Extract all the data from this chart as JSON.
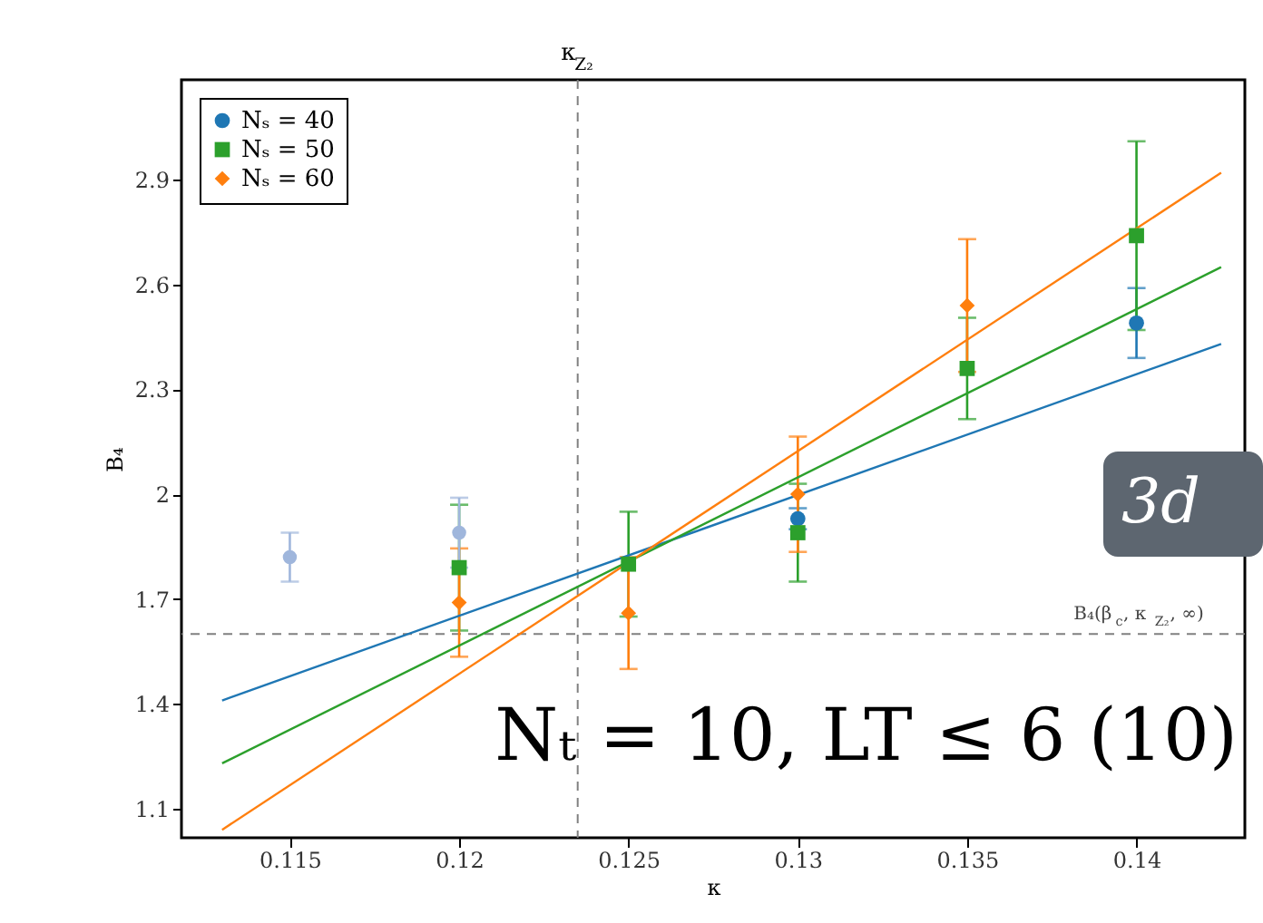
{
  "chart_data": {
    "type": "scatter",
    "xlabel": "κ",
    "ylabel": "B₄",
    "xlim": [
      0.1118,
      0.1432
    ],
    "ylim": [
      1.017,
      3.186
    ],
    "xticks": [
      0.115,
      0.12,
      0.125,
      0.13,
      0.135,
      0.14
    ],
    "yticks": [
      1.1,
      1.4,
      1.7,
      2,
      2.3,
      2.6,
      2.9
    ],
    "grid": false,
    "legend": "top left",
    "series": [
      {
        "name": "Nₛ = 40",
        "color": "#1f77b4",
        "marker": "circle",
        "x": [
          0.13,
          0.14
        ],
        "values": [
          1.93,
          2.49
        ],
        "errors": [
          0.03,
          0.1
        ]
      },
      {
        "name": "Nₛ = 50",
        "color": "#2ca02c",
        "marker": "square",
        "x": [
          0.12,
          0.125,
          0.13,
          0.135,
          0.14
        ],
        "values": [
          1.79,
          1.8,
          1.89,
          2.36,
          2.74
        ],
        "errors": [
          0.18,
          0.15,
          0.14,
          0.145,
          0.27
        ]
      },
      {
        "name": "Nₛ = 60",
        "color": "#ff7f0e",
        "marker": "diamond",
        "x": [
          0.12,
          0.125,
          0.13,
          0.135
        ],
        "values": [
          1.69,
          1.66,
          2.0,
          2.54
        ],
        "errors": [
          0.155,
          0.16,
          0.165,
          0.19
        ]
      },
      {
        "color": "#9fb6dc",
        "marker": "circle",
        "x": [
          0.115,
          0.12
        ],
        "values": [
          1.82,
          1.89
        ],
        "errors": [
          0.07,
          0.1
        ]
      },
      {
        "type": "line",
        "color": "#1f77b4",
        "x": [
          0.113,
          0.1425
        ],
        "values": [
          1.41,
          2.43
        ]
      },
      {
        "type": "line",
        "color": "#2ca02c",
        "x": [
          0.113,
          0.1425
        ],
        "values": [
          1.23,
          2.65
        ]
      },
      {
        "type": "line",
        "color": "#ff7f0e",
        "x": [
          0.113,
          0.1425
        ],
        "values": [
          1.04,
          2.92
        ]
      }
    ],
    "ref_lines": [
      {
        "axis": "x",
        "value": 0.1235,
        "label": "κ$_{Z₂}$",
        "color": "#808080",
        "line_style": "dashed"
      },
      {
        "axis": "y",
        "value": 1.6,
        "label": "B₄(β$_{c}$, κ$_{Z₂}$, ∞)",
        "color": "#808080",
        "line_style": "dashed"
      }
    ],
    "annotations": [
      "3d",
      "Nₜ = 10, LT ≤ 6 (10)"
    ]
  }
}
